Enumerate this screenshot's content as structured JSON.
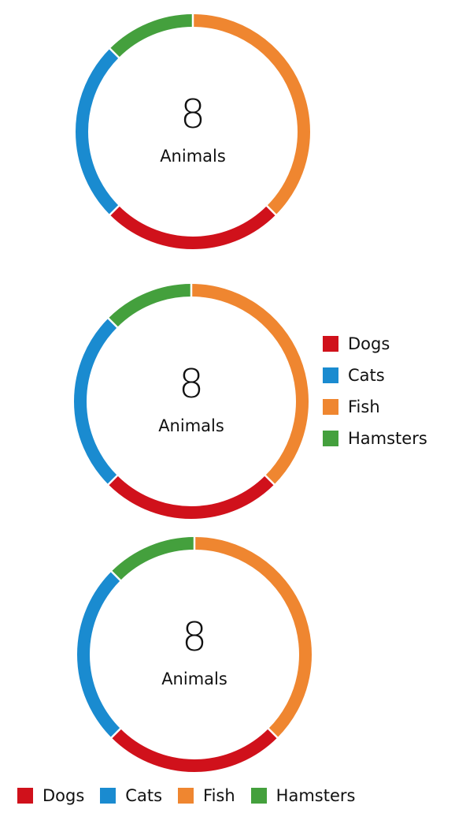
{
  "chart_data": [
    {
      "type": "donut",
      "center_value": "8",
      "center_label": "Animals",
      "categories": [
        "Dogs",
        "Cats",
        "Fish",
        "Hamsters"
      ],
      "values": [
        2,
        2,
        3,
        1
      ],
      "colors": [
        "#d0111b",
        "#1a8bd0",
        "#ef8630",
        "#44a03d"
      ],
      "legend": "none"
    },
    {
      "type": "donut",
      "center_value": "8",
      "center_label": "Animals",
      "categories": [
        "Dogs",
        "Cats",
        "Fish",
        "Hamsters"
      ],
      "values": [
        2,
        2,
        3,
        1
      ],
      "colors": [
        "#d0111b",
        "#1a8bd0",
        "#ef8630",
        "#44a03d"
      ],
      "legend": "right"
    },
    {
      "type": "donut",
      "center_value": "8",
      "center_label": "Animals",
      "categories": [
        "Dogs",
        "Cats",
        "Fish",
        "Hamsters"
      ],
      "values": [
        2,
        2,
        3,
        1
      ],
      "colors": [
        "#d0111b",
        "#1a8bd0",
        "#ef8630",
        "#44a03d"
      ],
      "legend": "bottom"
    }
  ],
  "legend": {
    "items": [
      {
        "label": "Dogs",
        "color": "#d0111b"
      },
      {
        "label": "Cats",
        "color": "#1a8bd0"
      },
      {
        "label": "Fish",
        "color": "#ef8630"
      },
      {
        "label": "Hamsters",
        "color": "#44a03d"
      }
    ]
  }
}
